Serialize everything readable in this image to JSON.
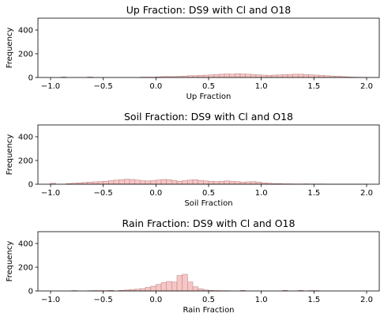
{
  "chart_data": [
    {
      "type": "bar",
      "title": "Up Fraction: DS9 with Cl and O18",
      "xlabel": "Up Fraction",
      "ylabel": "Frequency",
      "xlim": [
        -1.12,
        2.12
      ],
      "ylim": [
        0,
        500
      ],
      "xticks": [
        -1.0,
        -0.5,
        0.0,
        0.5,
        1.0,
        1.5,
        2.0
      ],
      "xtick_labels": [
        "−1.0",
        "−0.5",
        "0.0",
        "0.5",
        "1.0",
        "1.5",
        "2.0"
      ],
      "yticks": [
        0,
        200,
        400
      ],
      "ytick_labels": [
        "0",
        "200",
        "400"
      ],
      "bin_start": -1.0,
      "bin_width": 0.05,
      "values": [
        0,
        0,
        4,
        0,
        0,
        0,
        0,
        4,
        0,
        0,
        0,
        0,
        0,
        0,
        0,
        0,
        0,
        3,
        3,
        3,
        5,
        8,
        8,
        8,
        10,
        12,
        15,
        15,
        18,
        20,
        22,
        25,
        28,
        30,
        28,
        32,
        30,
        28,
        25,
        22,
        20,
        18,
        20,
        22,
        25,
        25,
        28,
        28,
        25,
        22,
        20,
        18,
        15,
        12,
        10,
        8,
        5,
        3,
        2,
        1
      ]
    },
    {
      "type": "bar",
      "title": "Soil Fraction: DS9 with Cl and O18",
      "xlabel": "Soil Fraction",
      "ylabel": "Frequency",
      "xlim": [
        -1.12,
        2.12
      ],
      "ylim": [
        0,
        500
      ],
      "xticks": [
        -1.0,
        -0.5,
        0.0,
        0.5,
        1.0,
        1.5,
        2.0
      ],
      "xtick_labels": [
        "−1.0",
        "−0.5",
        "0.0",
        "0.5",
        "1.0",
        "1.5",
        "2.0"
      ],
      "yticks": [
        0,
        200,
        400
      ],
      "ytick_labels": [
        "0",
        "200",
        "400"
      ],
      "bin_start": -1.0,
      "bin_width": 0.05,
      "values": [
        8,
        0,
        0,
        5,
        8,
        12,
        15,
        18,
        20,
        22,
        25,
        30,
        35,
        38,
        42,
        40,
        35,
        30,
        28,
        30,
        35,
        40,
        38,
        32,
        25,
        30,
        35,
        38,
        32,
        28,
        25,
        22,
        25,
        28,
        25,
        22,
        18,
        20,
        22,
        18,
        12,
        8,
        5,
        5,
        3,
        3,
        2,
        2,
        3,
        2,
        2,
        2,
        1,
        1,
        1,
        1,
        1,
        1,
        1,
        1
      ]
    },
    {
      "type": "bar",
      "title": "Rain Fraction: DS9 with Cl and O18",
      "xlabel": "Rain Fraction",
      "ylabel": "Frequency",
      "xlim": [
        -1.12,
        2.12
      ],
      "ylim": [
        0,
        500
      ],
      "xticks": [
        -1.0,
        -0.5,
        0.0,
        0.5,
        1.0,
        1.5,
        2.0
      ],
      "xtick_labels": [
        "−1.0",
        "−0.5",
        "0.0",
        "0.5",
        "1.0",
        "1.5",
        "2.0"
      ],
      "yticks": [
        0,
        200,
        400
      ],
      "ytick_labels": [
        "0",
        "200",
        "400"
      ],
      "bin_start": -1.0,
      "bin_width": 0.05,
      "values": [
        0,
        0,
        0,
        0,
        3,
        0,
        0,
        2,
        3,
        3,
        2,
        5,
        0,
        5,
        8,
        12,
        15,
        20,
        30,
        40,
        55,
        70,
        80,
        75,
        130,
        140,
        75,
        35,
        18,
        8,
        5,
        3,
        2,
        2,
        0,
        0,
        5,
        0,
        0,
        0,
        0,
        0,
        0,
        0,
        5,
        0,
        0,
        5,
        0,
        3,
        3,
        0,
        0,
        0,
        0,
        0,
        0,
        0,
        0,
        0
      ]
    }
  ]
}
